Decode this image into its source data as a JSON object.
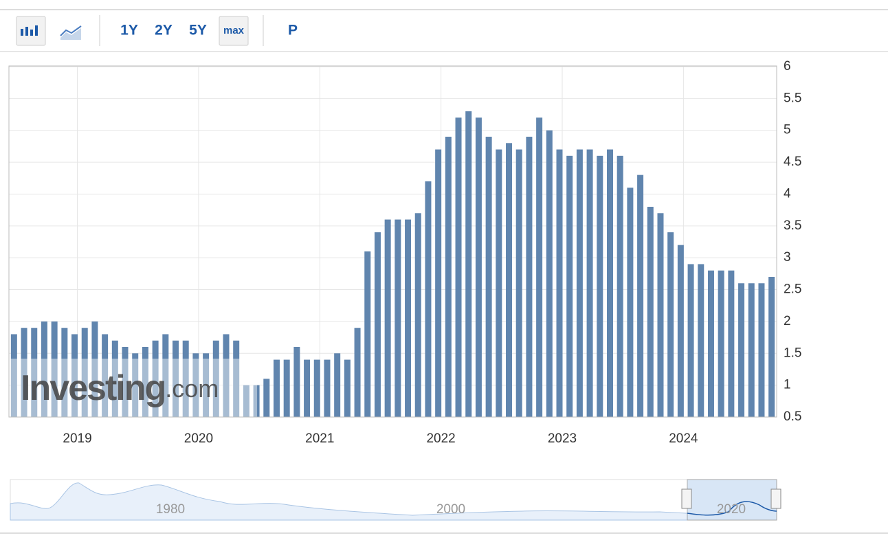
{
  "toolbar": {
    "buttons": [
      "1Y",
      "2Y",
      "5Y",
      "max",
      "P"
    ]
  },
  "chart_data": {
    "type": "bar",
    "categories": [
      null,
      null,
      null,
      null,
      null,
      null,
      "2019",
      null,
      null,
      null,
      null,
      null,
      null,
      null,
      null,
      null,
      null,
      null,
      "2020",
      null,
      null,
      null,
      null,
      null,
      null,
      null,
      null,
      null,
      null,
      null,
      "2021",
      null,
      null,
      null,
      null,
      null,
      null,
      null,
      null,
      null,
      null,
      null,
      "2022",
      null,
      null,
      null,
      null,
      null,
      null,
      null,
      null,
      null,
      null,
      null,
      "2023",
      null,
      null,
      null,
      null,
      null,
      null,
      null,
      null,
      null,
      null,
      null,
      "2024",
      null,
      null,
      null,
      null,
      null,
      null,
      null,
      null,
      null
    ],
    "values": [
      1.8,
      1.9,
      1.9,
      2.0,
      2.0,
      1.9,
      1.8,
      1.9,
      2.0,
      1.8,
      1.7,
      1.6,
      1.5,
      1.6,
      1.7,
      1.8,
      1.7,
      1.7,
      1.5,
      1.5,
      1.7,
      1.8,
      1.7,
      1.0,
      1.0,
      1.1,
      1.4,
      1.4,
      1.6,
      1.4,
      1.4,
      1.4,
      1.5,
      1.4,
      1.9,
      3.1,
      3.4,
      3.6,
      3.6,
      3.6,
      3.7,
      4.2,
      4.7,
      4.9,
      5.2,
      5.3,
      5.2,
      4.9,
      4.7,
      4.8,
      4.7,
      4.9,
      5.2,
      5.0,
      4.7,
      4.6,
      4.7,
      4.7,
      4.6,
      4.7,
      4.6,
      4.1,
      4.3,
      3.8,
      3.7,
      3.4,
      3.2,
      2.9,
      2.9,
      2.8,
      2.8,
      2.8,
      2.6,
      2.6,
      2.6,
      2.7
    ],
    "color": "#6085ae",
    "ylim": [
      0.5,
      6
    ],
    "yticks": [
      0.5,
      1,
      1.5,
      2,
      2.5,
      3,
      3.5,
      4,
      4.5,
      5,
      5.5,
      6
    ],
    "grid": true,
    "watermark": [
      "Investing",
      ".com"
    ]
  },
  "navigator": {
    "labels": [
      "1980",
      "2000",
      "2020"
    ]
  }
}
